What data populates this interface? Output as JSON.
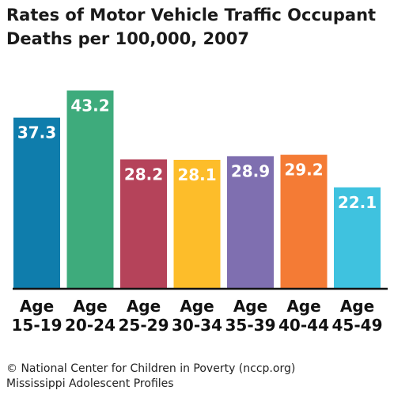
{
  "chart_data": {
    "type": "bar",
    "title_lines": [
      "Rates of Motor Vehicle Traffic Occupant",
      "Deaths per 100,000, 2007"
    ],
    "categories": [
      [
        "Age",
        "15-19"
      ],
      [
        "Age",
        "20-24"
      ],
      [
        "Age",
        "25-29"
      ],
      [
        "Age",
        "30-34"
      ],
      [
        "Age",
        "35-39"
      ],
      [
        "Age",
        "40-44"
      ],
      [
        "Age",
        "45-49"
      ]
    ],
    "values": [
      37.3,
      43.2,
      28.2,
      28.1,
      28.9,
      29.2,
      22.1
    ],
    "value_labels": [
      "37.3",
      "43.2",
      "28.2",
      "28.1",
      "28.9",
      "29.2",
      "22.1"
    ],
    "colors": [
      "#0f7dac",
      "#3eab7c",
      "#b5435a",
      "#fdbd2a",
      "#7f6fb0",
      "#f47b35",
      "#3fc2df"
    ],
    "ylim": [
      0,
      50
    ],
    "grid": false,
    "xlabel": "",
    "ylabel": ""
  },
  "footer": {
    "line1": "© National Center for Children in Poverty (nccp.org)",
    "line2": "Mississippi Adolescent Profiles"
  }
}
